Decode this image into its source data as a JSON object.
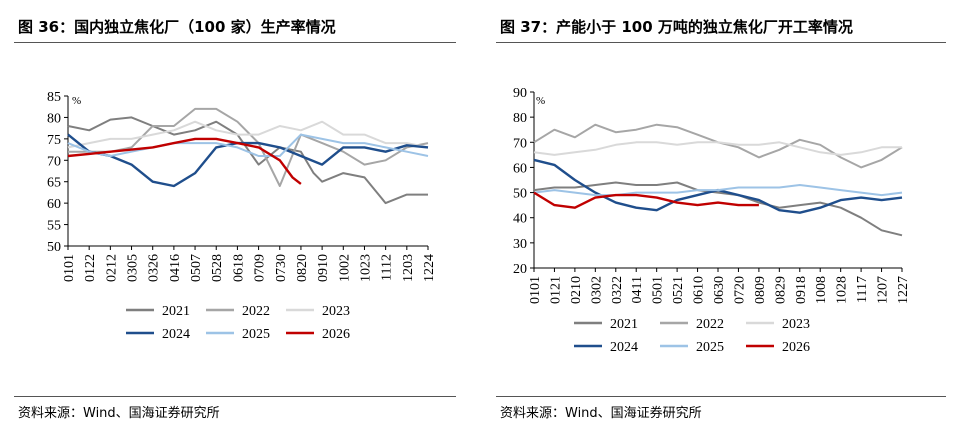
{
  "panels": [
    {
      "title": "图 36：国内独立焦化厂（100 家）生产率情况",
      "source": "资料来源：Wind、国海证券研究所"
    },
    {
      "title": "图 37：产能小于 100 万吨的独立焦化厂开工率情况",
      "source": "资料来源：Wind、国海证券研究所"
    }
  ],
  "chart_data": [
    {
      "type": "line",
      "unit_label": "%",
      "ylim": [
        50,
        85
      ],
      "yticks": [
        50,
        55,
        60,
        65,
        70,
        75,
        80,
        85
      ],
      "categories": [
        "0101",
        "0122",
        "0212",
        "0305",
        "0326",
        "0416",
        "0507",
        "0528",
        "0618",
        "0709",
        "0730",
        "0820",
        "0910",
        "1002",
        "1023",
        "1112",
        "1203",
        "1224"
      ],
      "legend": {
        "placement": "bottom",
        "rows": [
          [
            "2021",
            "2022",
            "2023"
          ],
          [
            "2024",
            "2025",
            "2026"
          ]
        ]
      },
      "series": [
        {
          "name": "2021",
          "color": "#7f7f7f",
          "points": [
            [
              0,
              78
            ],
            [
              1,
              77
            ],
            [
              2,
              79.5
            ],
            [
              3,
              80
            ],
            [
              4,
              78
            ],
            [
              5,
              76
            ],
            [
              6,
              77
            ],
            [
              7,
              79
            ],
            [
              8,
              76
            ],
            [
              9,
              69
            ],
            [
              10,
              73
            ],
            [
              11,
              72
            ],
            [
              11.6,
              67
            ],
            [
              12,
              65
            ],
            [
              13,
              67
            ],
            [
              14,
              66
            ],
            [
              15,
              60
            ],
            [
              16,
              62
            ],
            [
              17,
              62
            ]
          ]
        },
        {
          "name": "2022",
          "color": "#a6a6a6",
          "points": [
            [
              0,
              72
            ],
            [
              1,
              72
            ],
            [
              2,
              72
            ],
            [
              3,
              73
            ],
            [
              4,
              78
            ],
            [
              5,
              78
            ],
            [
              6,
              82
            ],
            [
              7,
              82
            ],
            [
              8,
              79
            ],
            [
              9,
              74
            ],
            [
              10,
              64
            ],
            [
              11,
              76
            ],
            [
              12,
              74
            ],
            [
              13,
              72
            ],
            [
              14,
              69
            ],
            [
              15,
              70
            ],
            [
              16,
              73
            ],
            [
              17,
              74
            ]
          ]
        },
        {
          "name": "2023",
          "color": "#d9d9d9",
          "points": [
            [
              0,
              73
            ],
            [
              1,
              74
            ],
            [
              2,
              75
            ],
            [
              3,
              75
            ],
            [
              4,
              76
            ],
            [
              5,
              77
            ],
            [
              6,
              79
            ],
            [
              7,
              77
            ],
            [
              8,
              76
            ],
            [
              9,
              76
            ],
            [
              10,
              78
            ],
            [
              11,
              77
            ],
            [
              12,
              79
            ],
            [
              13,
              76
            ],
            [
              14,
              76
            ],
            [
              15,
              74
            ],
            [
              16,
              74
            ],
            [
              17,
              73
            ]
          ]
        },
        {
          "name": "2024",
          "color": "#1f4e8c",
          "points": [
            [
              0,
              76
            ],
            [
              1,
              72
            ],
            [
              2,
              71
            ],
            [
              3,
              69
            ],
            [
              4,
              65
            ],
            [
              5,
              64
            ],
            [
              6,
              67
            ],
            [
              7,
              73
            ],
            [
              8,
              74
            ],
            [
              9,
              74
            ],
            [
              10,
              73
            ],
            [
              11,
              71
            ],
            [
              12,
              69
            ],
            [
              13,
              73
            ],
            [
              14,
              73
            ],
            [
              15,
              72
            ],
            [
              16,
              73.5
            ],
            [
              17,
              73
            ]
          ]
        },
        {
          "name": "2025",
          "color": "#9dc3e6",
          "points": [
            [
              0,
              74
            ],
            [
              1,
              72
            ],
            [
              2,
              71
            ],
            [
              3,
              72
            ],
            [
              4,
              73
            ],
            [
              5,
              74
            ],
            [
              6,
              74
            ],
            [
              7,
              74
            ],
            [
              8,
              73
            ],
            [
              9,
              71
            ],
            [
              10,
              71
            ],
            [
              11,
              76
            ],
            [
              12,
              75
            ],
            [
              13,
              74
            ],
            [
              14,
              74
            ],
            [
              15,
              73
            ],
            [
              16,
              72
            ],
            [
              17,
              71
            ]
          ]
        },
        {
          "name": "2026",
          "color": "#c00000",
          "points": [
            [
              0,
              71
            ],
            [
              1,
              71.5
            ],
            [
              2,
              72
            ],
            [
              3,
              72.5
            ],
            [
              4,
              73
            ],
            [
              5,
              74
            ],
            [
              6,
              75
            ],
            [
              7,
              75
            ],
            [
              8,
              74
            ],
            [
              9,
              73
            ],
            [
              10,
              70
            ],
            [
              10.6,
              66
            ],
            [
              11,
              64.5
            ]
          ]
        }
      ]
    },
    {
      "type": "line",
      "unit_label": "%",
      "ylim": [
        20,
        90
      ],
      "yticks": [
        20,
        30,
        40,
        50,
        60,
        70,
        80,
        90
      ],
      "categories": [
        "0101",
        "0121",
        "0210",
        "0302",
        "0322",
        "0411",
        "0501",
        "0521",
        "0610",
        "0630",
        "0720",
        "0809",
        "0829",
        "0918",
        "1008",
        "1028",
        "1117",
        "1207",
        "1227"
      ],
      "legend": {
        "placement": "bottom",
        "rows": [
          [
            "2021",
            "2022",
            "2023"
          ],
          [
            "2024",
            "2025",
            "2026"
          ]
        ]
      },
      "series": [
        {
          "name": "2021",
          "color": "#7f7f7f",
          "points": [
            [
              0,
              51
            ],
            [
              1,
              52
            ],
            [
              2,
              52
            ],
            [
              3,
              53
            ],
            [
              4,
              54
            ],
            [
              5,
              53
            ],
            [
              6,
              53
            ],
            [
              7,
              54
            ],
            [
              8,
              51
            ],
            [
              9,
              50
            ],
            [
              10,
              49
            ],
            [
              11,
              46
            ],
            [
              12,
              44
            ],
            [
              13,
              45
            ],
            [
              14,
              46
            ],
            [
              15,
              44
            ],
            [
              16,
              40
            ],
            [
              17,
              35
            ],
            [
              18,
              33
            ]
          ]
        },
        {
          "name": "2022",
          "color": "#a6a6a6",
          "points": [
            [
              0,
              70
            ],
            [
              1,
              75
            ],
            [
              2,
              72
            ],
            [
              3,
              77
            ],
            [
              4,
              74
            ],
            [
              5,
              75
            ],
            [
              6,
              77
            ],
            [
              7,
              76
            ],
            [
              8,
              73
            ],
            [
              9,
              70
            ],
            [
              10,
              68
            ],
            [
              11,
              64
            ],
            [
              12,
              67
            ],
            [
              13,
              71
            ],
            [
              14,
              69
            ],
            [
              15,
              64
            ],
            [
              16,
              60
            ],
            [
              17,
              63
            ],
            [
              18,
              68
            ]
          ]
        },
        {
          "name": "2023",
          "color": "#d9d9d9",
          "points": [
            [
              0,
              66
            ],
            [
              1,
              65
            ],
            [
              2,
              66
            ],
            [
              3,
              67
            ],
            [
              4,
              69
            ],
            [
              5,
              70
            ],
            [
              6,
              70
            ],
            [
              7,
              69
            ],
            [
              8,
              70
            ],
            [
              9,
              70
            ],
            [
              10,
              69
            ],
            [
              11,
              69
            ],
            [
              12,
              70
            ],
            [
              13,
              68
            ],
            [
              14,
              66
            ],
            [
              15,
              65
            ],
            [
              16,
              66
            ],
            [
              17,
              68
            ],
            [
              18,
              68
            ]
          ]
        },
        {
          "name": "2024",
          "color": "#1f4e8c",
          "points": [
            [
              0,
              63
            ],
            [
              1,
              61
            ],
            [
              2,
              55
            ],
            [
              3,
              50
            ],
            [
              4,
              46
            ],
            [
              5,
              44
            ],
            [
              6,
              43
            ],
            [
              7,
              47
            ],
            [
              8,
              49
            ],
            [
              9,
              51
            ],
            [
              10,
              49
            ],
            [
              11,
              47
            ],
            [
              12,
              43
            ],
            [
              13,
              42
            ],
            [
              14,
              44
            ],
            [
              15,
              47
            ],
            [
              16,
              48
            ],
            [
              17,
              47
            ],
            [
              18,
              48
            ]
          ]
        },
        {
          "name": "2025",
          "color": "#9dc3e6",
          "points": [
            [
              0,
              50
            ],
            [
              1,
              51
            ],
            [
              2,
              50
            ],
            [
              3,
              49
            ],
            [
              4,
              49
            ],
            [
              5,
              50
            ],
            [
              6,
              50
            ],
            [
              7,
              50
            ],
            [
              8,
              51
            ],
            [
              9,
              51
            ],
            [
              10,
              52
            ],
            [
              11,
              52
            ],
            [
              12,
              52
            ],
            [
              13,
              53
            ],
            [
              14,
              52
            ],
            [
              15,
              51
            ],
            [
              16,
              50
            ],
            [
              17,
              49
            ],
            [
              18,
              50
            ]
          ]
        },
        {
          "name": "2026",
          "color": "#c00000",
          "points": [
            [
              0,
              50
            ],
            [
              1,
              45
            ],
            [
              2,
              44
            ],
            [
              3,
              48
            ],
            [
              4,
              49
            ],
            [
              5,
              49
            ],
            [
              6,
              48
            ],
            [
              7,
              46
            ],
            [
              8,
              45
            ],
            [
              9,
              46
            ],
            [
              10,
              45
            ],
            [
              11,
              45
            ]
          ]
        }
      ]
    }
  ]
}
